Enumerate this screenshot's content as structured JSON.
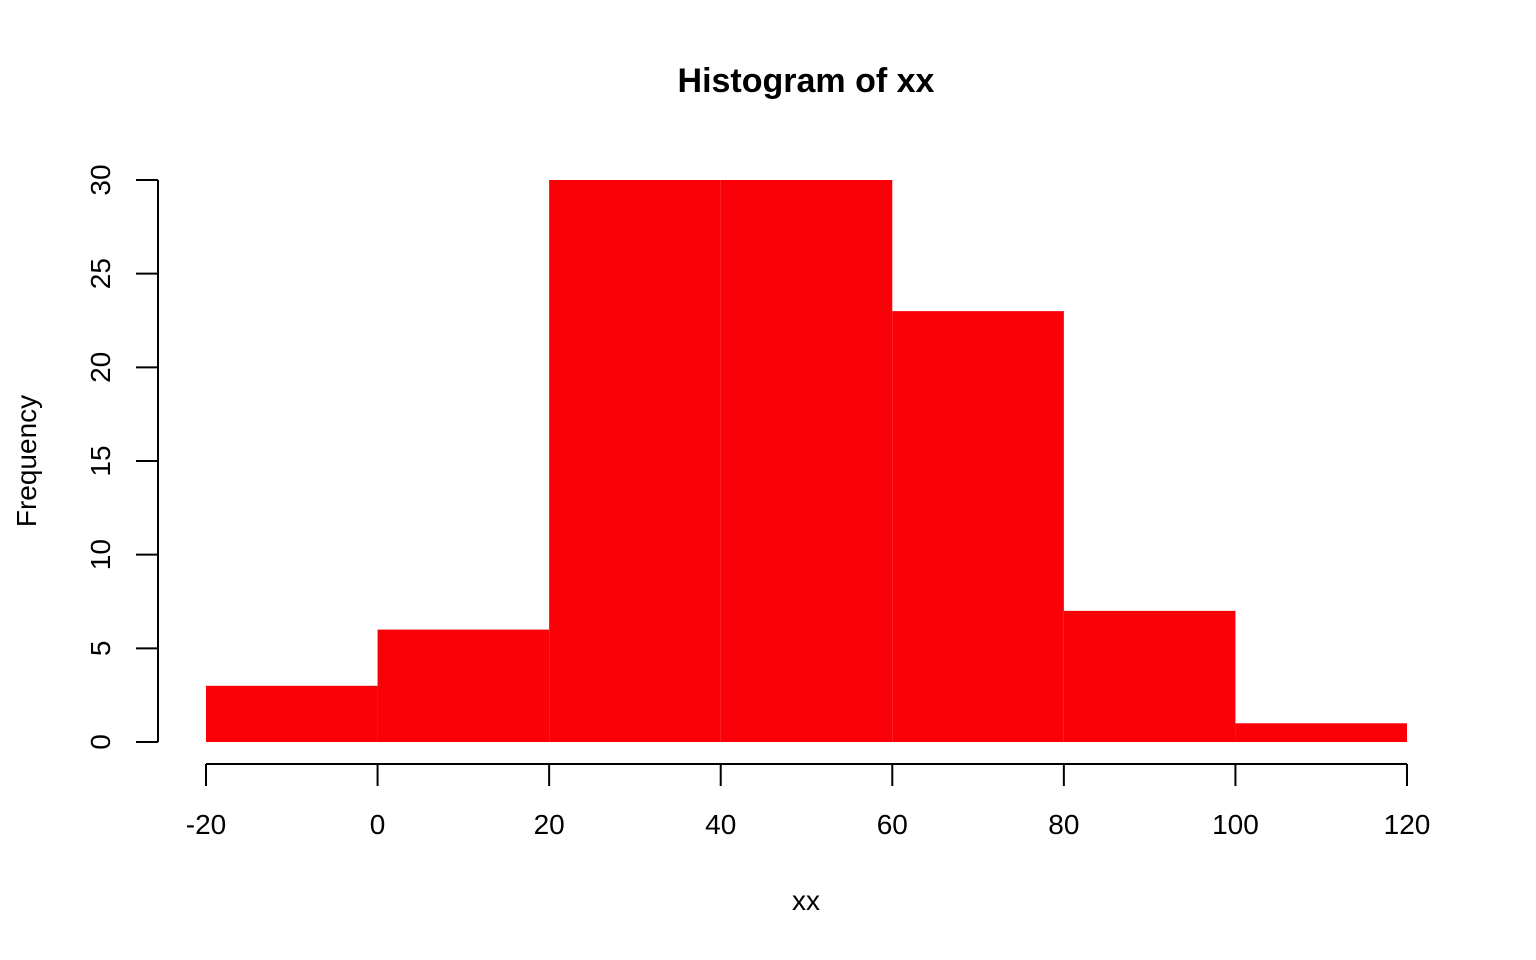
{
  "chart_data": {
    "type": "bar",
    "title": "Histogram of xx",
    "xlabel": "xx",
    "ylabel": "Frequency",
    "bin_edges": [
      -20,
      0,
      20,
      40,
      60,
      80,
      100,
      120
    ],
    "bins": [
      {
        "start": -20,
        "end": 0,
        "value": 3
      },
      {
        "start": 0,
        "end": 20,
        "value": 6
      },
      {
        "start": 20,
        "end": 40,
        "value": 30
      },
      {
        "start": 40,
        "end": 60,
        "value": 30
      },
      {
        "start": 60,
        "end": 80,
        "value": 23
      },
      {
        "start": 80,
        "end": 100,
        "value": 7
      },
      {
        "start": 100,
        "end": 120,
        "value": 1
      }
    ],
    "xticks": [
      -20,
      0,
      20,
      40,
      60,
      80,
      100,
      120
    ],
    "xtick_labels": [
      "-20",
      "0",
      "20",
      "40",
      "60",
      "80",
      "100",
      "120"
    ],
    "yticks": [
      0,
      5,
      10,
      15,
      20,
      25,
      30
    ],
    "ytick_labels": [
      "0",
      "5",
      "10",
      "15",
      "20",
      "25",
      "30"
    ],
    "xlim": [
      -20,
      120
    ],
    "ylim": [
      0,
      30
    ],
    "bar_color": "#fa0108",
    "grid": false,
    "legend": "none"
  }
}
